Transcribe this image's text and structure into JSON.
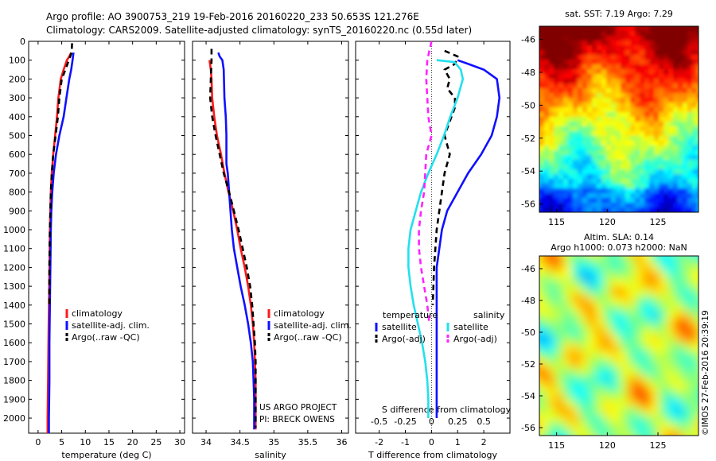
{
  "header": {
    "line1": "Argo profile: AO 3900753_219 19-Feb-2016 20160220_233 50.653S 121.276E",
    "line2": "Climatology: CARS2009. Satellite-adjusted climatology: synTS_20160220.nc (0.55d later)"
  },
  "colors": {
    "climatology": "#ff1a1a",
    "satellite": "#1010ff",
    "argo": "#000000",
    "sal_satellite": "#22e0ee",
    "sal_argo": "#ff22ff"
  },
  "credit": {
    "project": "US ARGO PROJECT",
    "pi": "PI: BRECK OWENS"
  },
  "watermark": "©IMOS 27-Feb-2016 20:39:19",
  "chart_data": [
    {
      "type": "line",
      "xlabel": "temperature (deg C)",
      "ylabel": "",
      "xlim": [
        -2,
        31
      ],
      "ylim": [
        2080,
        0
      ],
      "xticks": [
        0,
        5,
        10,
        15,
        20,
        25,
        30
      ],
      "xtick_labels": [
        "0",
        "5",
        "10",
        "15",
        "20",
        "25",
        "30"
      ],
      "yticks": [
        0,
        100,
        200,
        300,
        400,
        500,
        600,
        700,
        800,
        900,
        1000,
        1100,
        1200,
        1300,
        1400,
        1500,
        1600,
        1700,
        1800,
        1900,
        2000
      ],
      "ytick_labels": [
        "0",
        "100",
        "200",
        "300",
        "400",
        "500",
        "600",
        "700",
        "800",
        "900",
        "1000",
        "1100",
        "1200",
        "1300",
        "1400",
        "1500",
        "1600",
        "1700",
        "1800",
        "1900",
        "2000"
      ],
      "legend": {
        "entries": [
          "climatology",
          "satellite-adj. clim.",
          "Argo(..raw -QC)"
        ],
        "position": "lower-right"
      },
      "series": [
        {
          "name": "climatology",
          "style": "solid",
          "color": "climatology",
          "points": [
            [
              7.0,
              60
            ],
            [
              6.6,
              80
            ],
            [
              6.1,
              100
            ],
            [
              5.4,
              150
            ],
            [
              4.8,
              200
            ],
            [
              4.3,
              300
            ],
            [
              4.0,
              400
            ],
            [
              3.6,
              500
            ],
            [
              3.2,
              600
            ],
            [
              2.9,
              700
            ],
            [
              2.7,
              800
            ],
            [
              2.6,
              900
            ],
            [
              2.5,
              1000
            ],
            [
              2.4,
              1200
            ],
            [
              2.3,
              1400
            ],
            [
              2.2,
              1600
            ],
            [
              2.1,
              1800
            ],
            [
              2.0,
              2000
            ],
            [
              2.0,
              2080
            ]
          ]
        },
        {
          "name": "satellite-adj. clim.",
          "style": "solid",
          "color": "satellite",
          "points": [
            [
              7.5,
              60
            ],
            [
              7.3,
              100
            ],
            [
              7.0,
              150
            ],
            [
              6.6,
              200
            ],
            [
              6.0,
              300
            ],
            [
              5.4,
              400
            ],
            [
              4.5,
              500
            ],
            [
              3.8,
              600
            ],
            [
              3.3,
              700
            ],
            [
              3.0,
              800
            ],
            [
              2.8,
              900
            ],
            [
              2.7,
              1000
            ],
            [
              2.6,
              1200
            ],
            [
              2.5,
              1400
            ],
            [
              2.4,
              1600
            ],
            [
              2.4,
              1800
            ],
            [
              2.3,
              2000
            ],
            [
              2.3,
              2080
            ]
          ]
        },
        {
          "name": "Argo(..raw -QC)",
          "style": "dashed",
          "color": "argo",
          "points": [
            [
              7.2,
              10
            ],
            [
              7.1,
              60
            ],
            [
              6.5,
              100
            ],
            [
              5.8,
              150
            ],
            [
              5.0,
              200
            ],
            [
              4.5,
              300
            ],
            [
              4.2,
              400
            ],
            [
              3.7,
              500
            ],
            [
              3.2,
              600
            ],
            [
              2.9,
              700
            ],
            [
              2.7,
              800
            ],
            [
              2.6,
              900
            ],
            [
              2.5,
              1000
            ],
            [
              2.4,
              1200
            ],
            [
              2.4,
              1400
            ]
          ]
        }
      ]
    },
    {
      "type": "line",
      "xlabel": "salinity",
      "ylabel": "",
      "xlim": [
        33.8,
        36.1
      ],
      "ylim": [
        2080,
        0
      ],
      "xticks": [
        34,
        34.5,
        35,
        35.5,
        36
      ],
      "xtick_labels": [
        "34",
        "34.5",
        "35",
        "35.5",
        "36"
      ],
      "legend": {
        "entries": [
          "climatology",
          "satellite-adj. clim.",
          "Argo(..raw -QC)"
        ],
        "position": "lower-right"
      },
      "series": [
        {
          "name": "climatology",
          "style": "solid",
          "color": "climatology",
          "points": [
            [
              34.05,
              100
            ],
            [
              34.07,
              150
            ],
            [
              34.08,
              200
            ],
            [
              34.09,
              300
            ],
            [
              34.12,
              400
            ],
            [
              34.16,
              500
            ],
            [
              34.22,
              600
            ],
            [
              34.27,
              700
            ],
            [
              34.33,
              800
            ],
            [
              34.4,
              900
            ],
            [
              34.46,
              1000
            ],
            [
              34.51,
              1100
            ],
            [
              34.57,
              1200
            ],
            [
              34.62,
              1300
            ],
            [
              34.66,
              1400
            ],
            [
              34.69,
              1500
            ],
            [
              34.71,
              1600
            ],
            [
              34.72,
              1700
            ],
            [
              34.73,
              1800
            ],
            [
              34.73,
              1900
            ],
            [
              34.73,
              2000
            ],
            [
              34.73,
              2060
            ]
          ]
        },
        {
          "name": "satellite-adj. clim.",
          "style": "solid",
          "color": "satellite",
          "points": [
            [
              34.18,
              60
            ],
            [
              34.2,
              80
            ],
            [
              34.24,
              100
            ],
            [
              34.26,
              150
            ],
            [
              34.27,
              300
            ],
            [
              34.29,
              400
            ],
            [
              34.3,
              500
            ],
            [
              34.3,
              600
            ],
            [
              34.3,
              650
            ],
            [
              34.32,
              700
            ],
            [
              34.34,
              800
            ],
            [
              34.36,
              900
            ],
            [
              34.38,
              1000
            ],
            [
              34.41,
              1100
            ],
            [
              34.46,
              1200
            ],
            [
              34.51,
              1300
            ],
            [
              34.57,
              1400
            ],
            [
              34.62,
              1500
            ],
            [
              34.66,
              1600
            ],
            [
              34.69,
              1700
            ],
            [
              34.7,
              1800
            ],
            [
              34.71,
              1900
            ],
            [
              34.71,
              2000
            ],
            [
              34.71,
              2060
            ]
          ]
        },
        {
          "name": "Argo(..raw -QC)",
          "style": "dashed",
          "color": "argo",
          "points": [
            [
              34.08,
              40
            ],
            [
              34.08,
              100
            ],
            [
              34.07,
              200
            ],
            [
              34.06,
              300
            ],
            [
              34.09,
              400
            ],
            [
              34.14,
              500
            ],
            [
              34.2,
              600
            ],
            [
              34.26,
              700
            ],
            [
              34.34,
              800
            ],
            [
              34.41,
              900
            ],
            [
              34.48,
              1000
            ],
            [
              34.54,
              1100
            ],
            [
              34.6,
              1200
            ],
            [
              34.65,
              1300
            ],
            [
              34.68,
              1400
            ],
            [
              34.7,
              1500
            ],
            [
              34.72,
              1600
            ],
            [
              34.73,
              1700
            ],
            [
              34.73,
              1800
            ],
            [
              34.73,
              1900
            ],
            [
              34.73,
              2000
            ],
            [
              34.73,
              2050
            ]
          ]
        }
      ]
    },
    {
      "type": "line",
      "xlabel": "T difference from climatology",
      "x2label": "S difference from climatology",
      "xlim": [
        -2.9,
        3.0
      ],
      "x2lim": [
        -0.725,
        0.75
      ],
      "ylim": [
        2080,
        0
      ],
      "xticks": [
        -2,
        -1,
        0,
        1,
        2
      ],
      "xtick_labels": [
        "-2",
        "-1",
        "0",
        "1",
        "2"
      ],
      "x2ticks": [
        -0.5,
        -0.25,
        0,
        0.25,
        0.5
      ],
      "x2tick_labels": [
        "-0.5",
        "-0.25",
        "0",
        "0.25",
        "0.5"
      ],
      "legend": {
        "groups": [
          {
            "title": "temperature",
            "entries": [
              "satellite",
              "Argo(-adj)"
            ]
          },
          {
            "title": "salinity",
            "entries": [
              "satellite",
              "Argo(-adj)"
            ]
          }
        ],
        "position": "lower-center"
      },
      "series": [
        {
          "name": "temperature satellite",
          "style": "solid",
          "color": "satellite",
          "axis": "T",
          "points": [
            [
              1.0,
              100
            ],
            [
              1.4,
              120
            ],
            [
              2.0,
              150
            ],
            [
              2.5,
              200
            ],
            [
              2.6,
              300
            ],
            [
              2.5,
              400
            ],
            [
              2.3,
              500
            ],
            [
              1.9,
              600
            ],
            [
              1.4,
              700
            ],
            [
              1.0,
              800
            ],
            [
              0.6,
              900
            ],
            [
              0.4,
              1000
            ],
            [
              0.3,
              1100
            ],
            [
              0.2,
              1200
            ],
            [
              0.2,
              1500
            ],
            [
              0.2,
              1800
            ],
            [
              0.2,
              2000
            ]
          ]
        },
        {
          "name": "temperature Argo(-adj)",
          "style": "dashed",
          "color": "argo",
          "axis": "T",
          "points": [
            [
              0.5,
              50
            ],
            [
              1.0,
              80
            ],
            [
              0.9,
              120
            ],
            [
              0.5,
              150
            ],
            [
              0.7,
              200
            ],
            [
              0.6,
              250
            ],
            [
              0.9,
              300
            ],
            [
              0.9,
              350
            ],
            [
              0.5,
              500
            ],
            [
              0.7,
              600
            ],
            [
              0.5,
              700
            ],
            [
              0.4,
              800
            ],
            [
              0.3,
              900
            ],
            [
              0.2,
              1000
            ],
            [
              0.1,
              1200
            ],
            [
              0.05,
              1400
            ]
          ]
        },
        {
          "name": "salinity satellite",
          "style": "solid",
          "color": "sal_satellite",
          "axis": "S",
          "points": [
            [
              0.05,
              100
            ],
            [
              0.22,
              110
            ],
            [
              0.28,
              150
            ],
            [
              0.3,
              200
            ],
            [
              0.25,
              300
            ],
            [
              0.18,
              400
            ],
            [
              0.12,
              500
            ],
            [
              0.05,
              600
            ],
            [
              -0.03,
              700
            ],
            [
              -0.1,
              800
            ],
            [
              -0.15,
              900
            ],
            [
              -0.2,
              1000
            ],
            [
              -0.22,
              1100
            ],
            [
              -0.22,
              1200
            ],
            [
              -0.2,
              1300
            ],
            [
              -0.17,
              1400
            ],
            [
              -0.13,
              1500
            ],
            [
              -0.09,
              1600
            ],
            [
              -0.06,
              1700
            ],
            [
              -0.04,
              1800
            ],
            [
              -0.03,
              1900
            ],
            [
              -0.03,
              2000
            ]
          ]
        },
        {
          "name": "salinity Argo(-adj)",
          "style": "dashed",
          "color": "sal_argo",
          "axis": "S",
          "points": [
            [
              0.0,
              0
            ],
            [
              -0.02,
              50
            ],
            [
              -0.04,
              100
            ],
            [
              -0.05,
              200
            ],
            [
              -0.04,
              300
            ],
            [
              -0.03,
              400
            ],
            [
              0.0,
              500
            ],
            [
              -0.05,
              600
            ],
            [
              -0.06,
              700
            ],
            [
              -0.07,
              800
            ],
            [
              -0.1,
              900
            ],
            [
              -0.12,
              1000
            ],
            [
              -0.12,
              1100
            ],
            [
              -0.1,
              1200
            ],
            [
              -0.07,
              1300
            ],
            [
              -0.04,
              1400
            ],
            [
              -0.02,
              1500
            ]
          ]
        }
      ]
    },
    {
      "type": "heatmap",
      "title": "sat. SST: 7.19 Argo: 7.29",
      "xlim": [
        113.3,
        129.0
      ],
      "ylim": [
        -56.5,
        -45.2
      ],
      "xticks": [
        115,
        120,
        125
      ],
      "yticks": [
        -46,
        -48,
        -50,
        -52,
        -54,
        -56
      ],
      "ytick_labels": [
        "-46",
        "-48",
        "-50",
        "-52",
        "-54",
        "-56"
      ],
      "colormap": "jet",
      "gradient": "warm north, cold south",
      "profile_location": [
        121.276,
        -50.653
      ]
    },
    {
      "type": "heatmap",
      "title": "Altim. SLA: 0.14",
      "subtitle": "Argo h1000: 0.073 h2000: NaN",
      "xlim": [
        113.3,
        129.0
      ],
      "ylim": [
        -56.5,
        -45.2
      ],
      "xticks": [
        115,
        120,
        125
      ],
      "yticks": [
        -46,
        -48,
        -50,
        -52,
        -54,
        -56
      ],
      "ytick_labels": [
        "-46",
        "-48",
        "-50",
        "-52",
        "-54",
        "-56"
      ],
      "colormap": "jet",
      "profile_location": [
        121.276,
        -50.653
      ]
    }
  ]
}
